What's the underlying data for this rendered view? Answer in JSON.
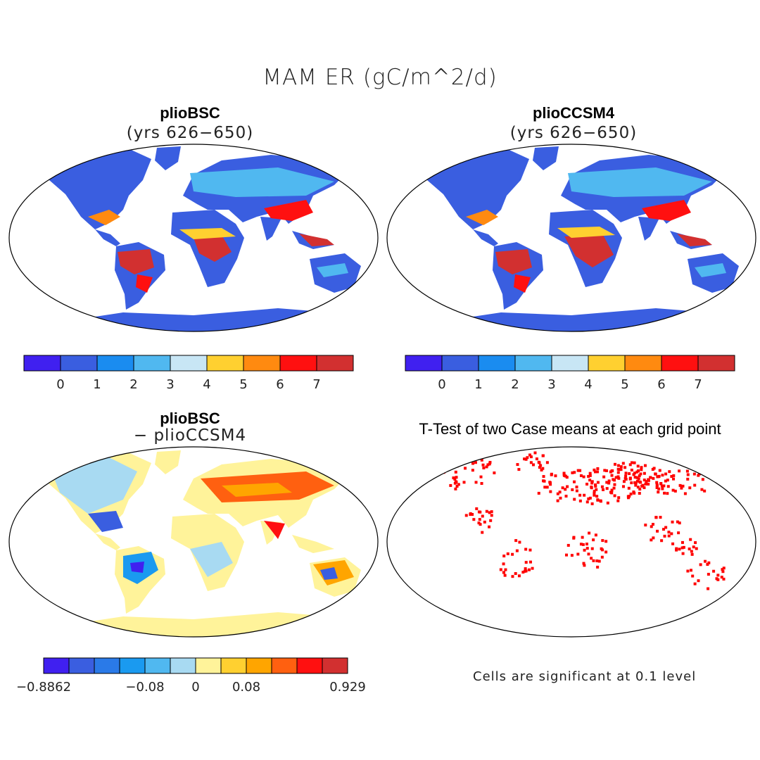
{
  "title": "MAM ER (gC/m^2/d)",
  "panels": [
    {
      "id": "bsc",
      "title": "plioBSC",
      "subtitle": "(yrs 626−650)"
    },
    {
      "id": "ccsm",
      "title": "plioCCSM4",
      "subtitle": "(yrs 626−650)"
    },
    {
      "id": "diff",
      "title": "plioBSC",
      "subtitle": "− plioCCSM4"
    },
    {
      "id": "ttest",
      "title": "T-Test of two Case means at each grid point"
    }
  ],
  "colorbars": {
    "absolute": {
      "colors": [
        "#4020f0",
        "#3a5ee0",
        "#1a8cf0",
        "#50b8f0",
        "#c8e6f5",
        "#ffd030",
        "#ff8a10",
        "#ff1010",
        "#d23030"
      ],
      "tick_labels": [
        "0",
        "1",
        "2",
        "3",
        "4",
        "5",
        "6",
        "7"
      ]
    },
    "difference": {
      "colors": [
        "#4020f0",
        "#3a5ee0",
        "#2a7ae8",
        "#1a9af0",
        "#50b8f0",
        "#a8daf2",
        "#fff39a",
        "#ffd030",
        "#ffa500",
        "#ff6010",
        "#ff1010",
        "#d23030"
      ],
      "tick_labels": [
        "−0.8862",
        "−0.08",
        "0",
        "0.08",
        "0.929"
      ]
    }
  },
  "significance_color": "#ff0000",
  "significance_note": "Cells are significant at 0.1 level"
}
